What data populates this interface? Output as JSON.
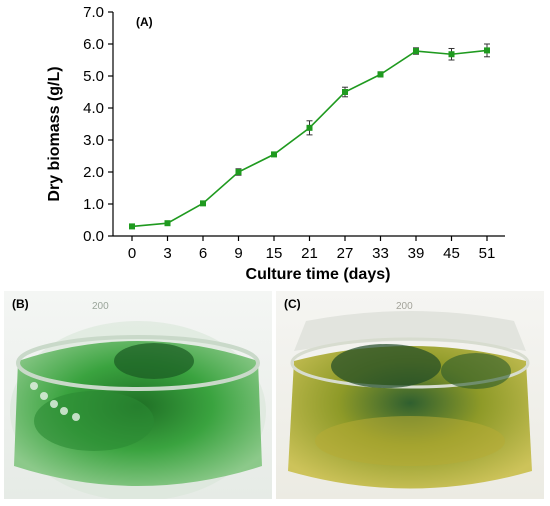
{
  "chart_data": {
    "type": "line",
    "panel_label": "(A)",
    "xlabel": "Culture time (days)",
    "ylabel": "Dry biomass (g/L)",
    "categories": [
      "0",
      "3",
      "6",
      "9",
      "15",
      "21",
      "27",
      "33",
      "39",
      "45",
      "51"
    ],
    "ylim": [
      0,
      7
    ],
    "yticks": [
      "0.0",
      "1.0",
      "2.0",
      "3.0",
      "4.0",
      "5.0",
      "6.0",
      "7.0"
    ],
    "grid": false,
    "series": [
      {
        "values": [
          0.3,
          0.4,
          1.02,
          2.0,
          2.55,
          3.38,
          4.5,
          5.05,
          5.78,
          5.68,
          5.8
        ],
        "errors": [
          0.03,
          0.04,
          0.06,
          0.1,
          0.06,
          0.22,
          0.15,
          0.08,
          0.1,
          0.18,
          0.2
        ],
        "color": "#1f9a1f"
      }
    ]
  },
  "photos": {
    "b": {
      "label": "(B)",
      "glass_mark": "200"
    },
    "c": {
      "label": "(C)",
      "glass_mark": "200"
    }
  },
  "colors": {
    "series": "#1f9a1f",
    "culture_b": "#2f9a35",
    "culture_c": "#a8a82a"
  }
}
